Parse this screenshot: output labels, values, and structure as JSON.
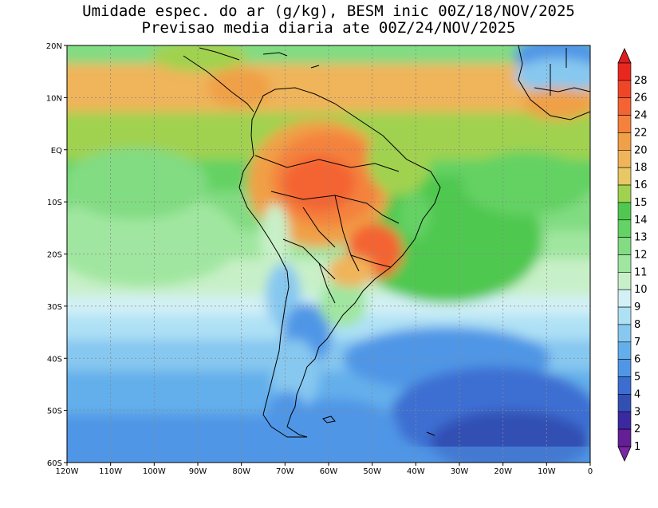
{
  "title": {
    "line1": "Umidade espec. do ar (g/kg), BESM inic 00Z/18/NOV/2025",
    "line2": "Previsao media diaria ate 00Z/24/NOV/2025"
  },
  "map": {
    "lon_range": [
      -120,
      0
    ],
    "lat_range": [
      -60,
      20
    ],
    "lat_ticks": [
      {
        "value": 20,
        "label": "20N"
      },
      {
        "value": 10,
        "label": "10N"
      },
      {
        "value": 0,
        "label": "EQ"
      },
      {
        "value": -10,
        "label": "10S"
      },
      {
        "value": -20,
        "label": "20S"
      },
      {
        "value": -30,
        "label": "30S"
      },
      {
        "value": -40,
        "label": "40S"
      },
      {
        "value": -50,
        "label": "50S"
      },
      {
        "value": -60,
        "label": "60S"
      }
    ],
    "lon_ticks": [
      {
        "value": -120,
        "label": "120W"
      },
      {
        "value": -110,
        "label": "110W"
      },
      {
        "value": -100,
        "label": "100W"
      },
      {
        "value": -90,
        "label": "90W"
      },
      {
        "value": -80,
        "label": "80W"
      },
      {
        "value": -70,
        "label": "70W"
      },
      {
        "value": -60,
        "label": "60W"
      },
      {
        "value": -50,
        "label": "50W"
      },
      {
        "value": -40,
        "label": "40W"
      },
      {
        "value": -30,
        "label": "30W"
      },
      {
        "value": -20,
        "label": "20W"
      },
      {
        "value": -10,
        "label": "10W"
      },
      {
        "value": 0,
        "label": "0"
      }
    ],
    "gridlines": true
  },
  "colorbar": {
    "levels": [
      {
        "value": 28,
        "label": "28",
        "color": "#e8281e"
      },
      {
        "value": 26,
        "label": "26",
        "color": "#f04628"
      },
      {
        "value": 24,
        "label": "24",
        "color": "#f46432"
      },
      {
        "value": 22,
        "label": "22",
        "color": "#f4823c"
      },
      {
        "value": 20,
        "label": "20",
        "color": "#f0a046"
      },
      {
        "value": 18,
        "label": "18",
        "color": "#f0b45a"
      },
      {
        "value": 16,
        "label": "16",
        "color": "#e8c864"
      },
      {
        "value": 15,
        "label": "15",
        "color": "#a0d250"
      },
      {
        "value": 14,
        "label": "14",
        "color": "#50c850"
      },
      {
        "value": 13,
        "label": "13",
        "color": "#64d264"
      },
      {
        "value": 12,
        "label": "12",
        "color": "#82dc82"
      },
      {
        "value": 11,
        "label": "11",
        "color": "#a0e6a0"
      },
      {
        "value": 10,
        "label": "10",
        "color": "#c8f0c8"
      },
      {
        "value": 9,
        "label": "9",
        "color": "#d2f0f5"
      },
      {
        "value": 8,
        "label": "8",
        "color": "#afe1f5"
      },
      {
        "value": 7,
        "label": "7",
        "color": "#87c8f0"
      },
      {
        "value": 6,
        "label": "6",
        "color": "#64afeb"
      },
      {
        "value": 5,
        "label": "5",
        "color": "#5096e6"
      },
      {
        "value": 4,
        "label": "4",
        "color": "#3c6ed2"
      },
      {
        "value": 3,
        "label": "3",
        "color": "#3250b4"
      },
      {
        "value": 2,
        "label": "2",
        "color": "#3c28a0"
      },
      {
        "value": 1,
        "label": "1",
        "color": "#641e96"
      }
    ],
    "top_arrow_color": "#dc1e1e",
    "bottom_arrow_color": "#7828a0"
  }
}
